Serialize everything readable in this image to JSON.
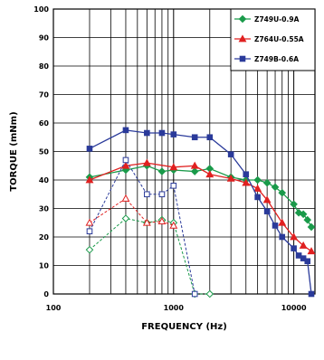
{
  "chart_data": {
    "type": "line",
    "title": "",
    "xlabel": "FREQUENCY (Hz)",
    "ylabel": "TORQUE (mNm)",
    "x_scale": "log",
    "xlim": [
      100,
      15000
    ],
    "ylim": [
      0,
      100
    ],
    "y_ticks": [
      0,
      10,
      20,
      30,
      40,
      50,
      60,
      70,
      80,
      90,
      100
    ],
    "x_ticks": [
      100,
      1000,
      10000
    ],
    "grid": true,
    "legend_position": "top-right",
    "series": [
      {
        "name": "Z749U-0.9A",
        "color": "#1a9a4a",
        "marker": "diamond",
        "line": "solid",
        "points": [
          [
            200,
            41
          ],
          [
            400,
            43.5
          ],
          [
            600,
            45
          ],
          [
            800,
            43
          ],
          [
            1000,
            43.5
          ],
          [
            1500,
            43
          ],
          [
            2000,
            44
          ],
          [
            3000,
            41
          ],
          [
            4000,
            40
          ],
          [
            5000,
            40
          ],
          [
            6000,
            39
          ],
          [
            7000,
            37.5
          ],
          [
            8000,
            35.5
          ],
          [
            10000,
            31.5
          ],
          [
            11000,
            28.5
          ],
          [
            12000,
            28
          ],
          [
            13000,
            26
          ],
          [
            14000,
            23.5
          ]
        ]
      },
      {
        "name": "Z749U-0.9A",
        "color": "#1a9a4a",
        "marker": "diamond",
        "line": "dashed",
        "points": [
          [
            200,
            15.5
          ],
          [
            400,
            26.5
          ],
          [
            600,
            25
          ],
          [
            800,
            26
          ],
          [
            1000,
            25
          ],
          [
            1500,
            0
          ],
          [
            2000,
            0
          ]
        ]
      },
      {
        "name": "Z764U-0.55A",
        "color": "#e02020",
        "marker": "triangle",
        "line": "solid",
        "points": [
          [
            200,
            40
          ],
          [
            400,
            45
          ],
          [
            600,
            46
          ],
          [
            1000,
            44.5
          ],
          [
            1500,
            45
          ],
          [
            2000,
            42
          ],
          [
            3000,
            40.5
          ],
          [
            4000,
            39
          ],
          [
            5000,
            37
          ],
          [
            6000,
            33
          ],
          [
            8000,
            25
          ],
          [
            10000,
            20
          ],
          [
            12000,
            17
          ],
          [
            14000,
            15
          ]
        ]
      },
      {
        "name": "Z764U-0.55A",
        "color": "#e02020",
        "marker": "triangle",
        "line": "dashed",
        "points": [
          [
            200,
            25
          ],
          [
            400,
            33.5
          ],
          [
            600,
            25
          ],
          [
            800,
            25.5
          ],
          [
            1000,
            24
          ]
        ]
      },
      {
        "name": "Z749B-0.6A",
        "color": "#2a3a9a",
        "marker": "square",
        "line": "solid",
        "points": [
          [
            200,
            51
          ],
          [
            400,
            57.5
          ],
          [
            600,
            56.5
          ],
          [
            800,
            56.5
          ],
          [
            1000,
            56
          ],
          [
            1500,
            55
          ],
          [
            2000,
            55
          ],
          [
            3000,
            49
          ],
          [
            4000,
            42
          ],
          [
            5000,
            34
          ],
          [
            6000,
            29
          ],
          [
            7000,
            24
          ],
          [
            8000,
            20
          ],
          [
            10000,
            16
          ],
          [
            11000,
            13.5
          ],
          [
            12000,
            12.5
          ],
          [
            13000,
            11.5
          ],
          [
            14000,
            0
          ]
        ]
      },
      {
        "name": "Z749B-0.6A",
        "color": "#2a3a9a",
        "marker": "square",
        "line": "dashed",
        "points": [
          [
            200,
            22
          ],
          [
            400,
            47
          ],
          [
            600,
            35
          ],
          [
            800,
            35
          ],
          [
            1000,
            38
          ],
          [
            1500,
            0
          ]
        ]
      }
    ],
    "legend": [
      {
        "label": "Z749U-0.9A",
        "color": "#1a9a4a",
        "marker": "diamond"
      },
      {
        "label": "Z764U-0.55A",
        "color": "#e02020",
        "marker": "triangle"
      },
      {
        "label": "Z749B-0.6A",
        "color": "#2a3a9a",
        "marker": "square"
      }
    ]
  }
}
